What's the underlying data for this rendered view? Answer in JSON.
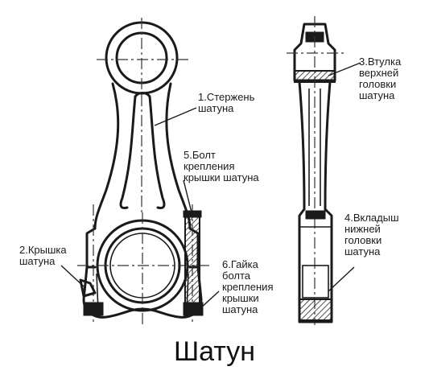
{
  "title": "Шатун",
  "labels": {
    "rod": "1.Стержень\nшатуна",
    "cap": "2.Крышка\nшатуна",
    "bushing": "3.Втулка\nверхней\nголовки\nшатуна",
    "bearing": "4.Вкладыш\nнижней\nголовки\nшатуна",
    "bolt": "5.Болт\nкрепления\nкрышки шатуна",
    "nut": "6.Гайка\nболта\nкрепления\nкрышки\nшатуна"
  }
}
